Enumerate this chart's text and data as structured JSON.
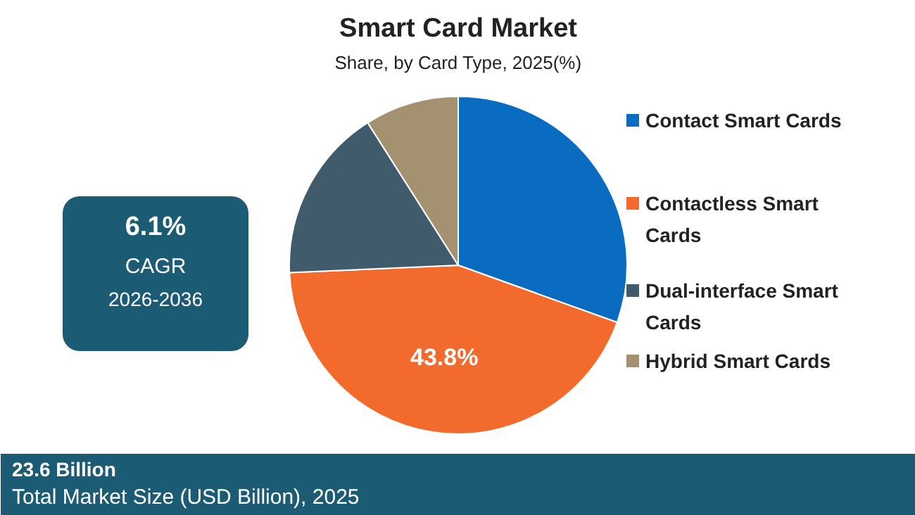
{
  "chart_data": {
    "type": "pie",
    "title": "Smart Card Market",
    "subtitle": "Share, by Card Type, 2025(%)",
    "categories": [
      "Contact Smart Cards",
      "Contactless Smart Cards",
      "Dual-interface Smart Cards",
      "Hybrid Smart Cards"
    ],
    "values": [
      30.5,
      43.8,
      16.7,
      9.0
    ],
    "colors": [
      "#0a6cc0",
      "#f26b2d",
      "#3f5b6c",
      "#a39170"
    ],
    "value_labels": [
      null,
      "43.8%",
      null,
      null
    ],
    "legend": "right",
    "annotations": [
      "6.1%",
      "CAGR",
      "2026-2036",
      "23.6 Billion",
      "Total Market Size (USD Billion), 2025"
    ]
  }
}
